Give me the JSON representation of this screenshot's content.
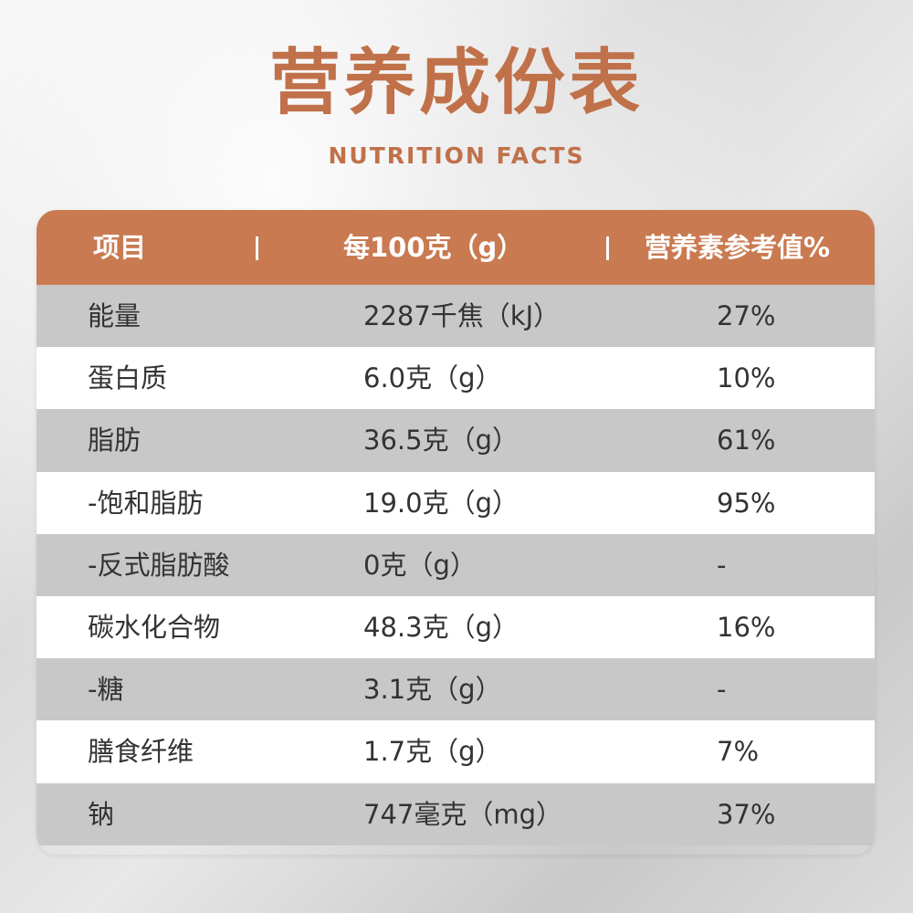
{
  "title": "营养成份表",
  "subtitle": "NUTRITION FACTS",
  "colors": {
    "accent": "#c0714a",
    "header_bg": "#c97a50",
    "row_shaded": "#c8c8c8",
    "row_light": "#ffffff"
  },
  "table": {
    "headers": {
      "item": "项目",
      "per_100": "每100克（g）",
      "nrv": "营养素参考值%"
    },
    "rows": [
      {
        "item": "能量",
        "amount": "2287千焦（kJ）",
        "nrv": "27%"
      },
      {
        "item": "蛋白质",
        "amount": "6.0克（g）",
        "nrv": "10%"
      },
      {
        "item": "脂肪",
        "amount": "36.5克（g）",
        "nrv": "61%"
      },
      {
        "item": "-饱和脂肪",
        "amount": "19.0克（g）",
        "nrv": "95%"
      },
      {
        "item": "-反式脂肪酸",
        "amount": "0克（g）",
        "nrv": "-"
      },
      {
        "item": "碳水化合物",
        "amount": "48.3克（g）",
        "nrv": "16%"
      },
      {
        "item": "-糖",
        "amount": "3.1克（g）",
        "nrv": "-"
      },
      {
        "item": "膳食纤维",
        "amount": "1.7克（g）",
        "nrv": "7%"
      },
      {
        "item": "钠",
        "amount": "747毫克（mg）",
        "nrv": "37%"
      }
    ]
  }
}
